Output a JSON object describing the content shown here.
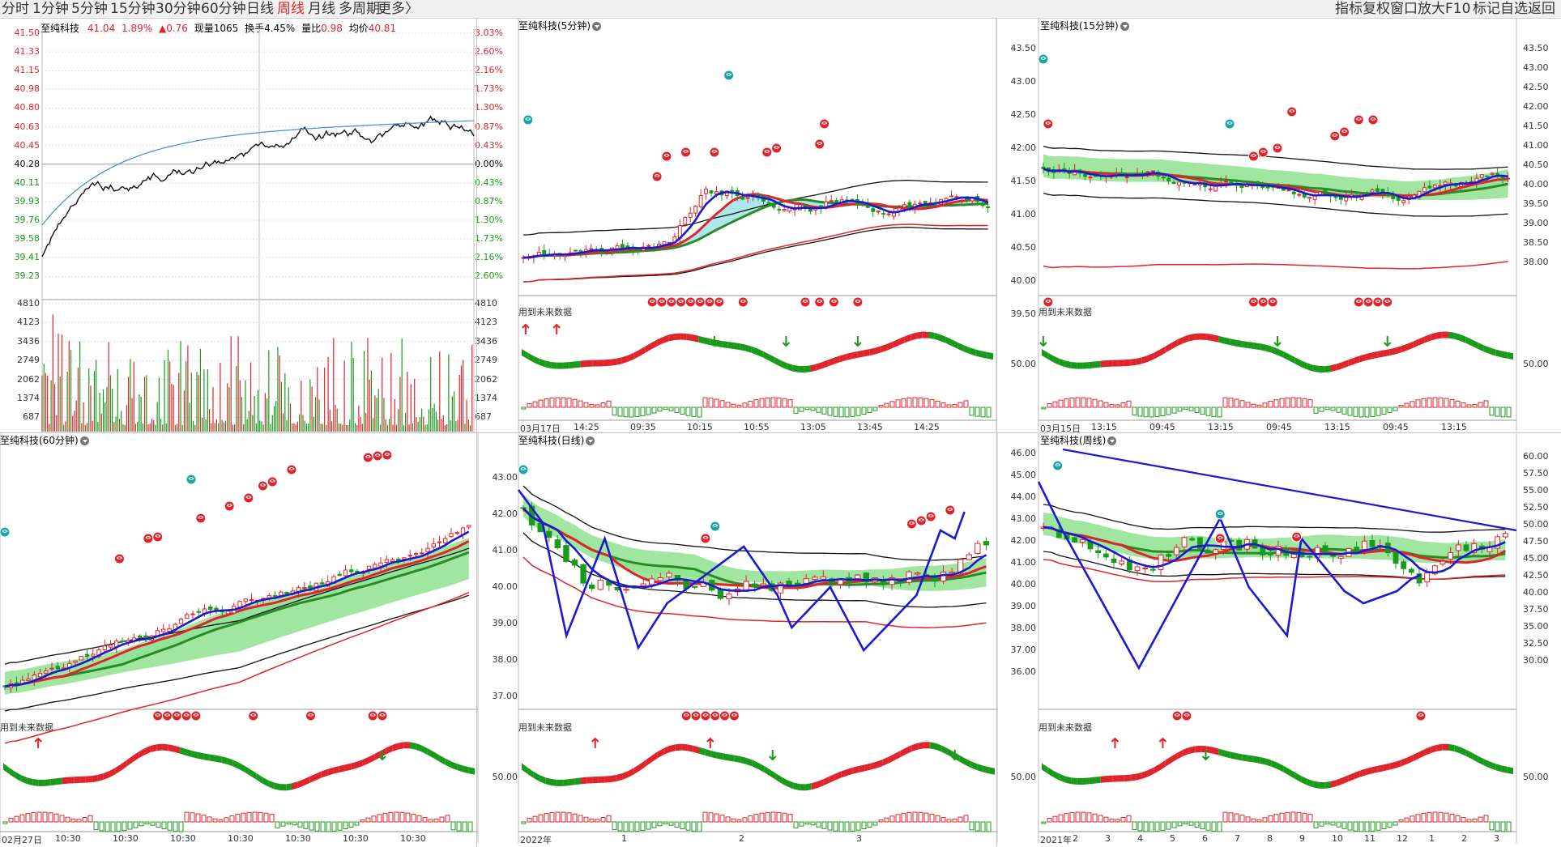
{
  "toolbar": {
    "timeframes": [
      "分时",
      "1分钟",
      "5分钟",
      "15分钟",
      "30分钟",
      "60分钟",
      "日线",
      "周线",
      "月线",
      "多周期",
      "更多〉"
    ],
    "active": "周线",
    "right_items": [
      "指标",
      "复权",
      "窗口",
      "放大",
      "F10",
      "标记",
      "自选",
      "返回"
    ]
  },
  "colors": {
    "up": "#e0242b",
    "down": "#1a9a1a",
    "blue": "#1a1ad0",
    "avg": "#3a8fd8",
    "cyan": "#9ee3e8",
    "green_band": "#8fe28f"
  },
  "intraday": {
    "title": "至纯科技",
    "quote": {
      "price": "41.04",
      "pct": "1.89%",
      "chg": "▲0.76",
      "vol_label": "现量",
      "vol": "1065",
      "turn_label": "换手",
      "turn": "4.45%",
      "ratio_label": "量比",
      "ratio": "0.98",
      "avg_label": "均价",
      "avg": "40.81"
    },
    "price_ticks": [
      "41.50",
      "41.33",
      "41.15",
      "40.98",
      "40.80",
      "40.63",
      "40.45",
      "40.28",
      "40.11",
      "39.93",
      "39.76",
      "39.58",
      "39.41",
      "39.23"
    ],
    "pct_ticks": [
      "3.03%",
      "2.60%",
      "2.16%",
      "1.73%",
      "1.30%",
      "0.87%",
      "0.43%",
      "0.00%",
      "0.43%",
      "0.87%",
      "1.30%",
      "1.73%",
      "2.16%",
      "2.60%"
    ],
    "vol_ticks": [
      "4810",
      "4123",
      "3436",
      "2749",
      "2062",
      "1374",
      "687"
    ]
  },
  "p5": {
    "title": "至纯科技(5分钟)",
    "price_ticks": [],
    "note": "用到未来数据",
    "date": "03月17日",
    "times": [
      "14:25",
      "09:35",
      "10:15",
      "10:55",
      "13:05",
      "13:45",
      "14:25"
    ]
  },
  "p15": {
    "title": "至纯科技(15分钟)",
    "left_ticks": [
      "43.50",
      "43.00",
      "42.50",
      "42.00",
      "41.50",
      "41.00",
      "40.50",
      "40.00",
      "39.50"
    ],
    "right_ticks": [
      "43.50",
      "43.00",
      "42.50",
      "42.00",
      "41.50",
      "41.00",
      "40.50",
      "40.00",
      "39.50",
      "39.00",
      "38.50",
      "38.00"
    ],
    "ind_left": "50.00",
    "ind_right": "50.00",
    "note": "用到未来数据",
    "date": "03月15日",
    "times": [
      "13:15",
      "09:45",
      "13:15",
      "09:45",
      "13:15",
      "09:45",
      "13:15"
    ]
  },
  "p60": {
    "title": "至纯科技(60分钟)",
    "note": "用到未来数据",
    "date": "02月27日",
    "times": [
      "10:30",
      "10:30",
      "10:30",
      "10:30",
      "10:30",
      "10:30",
      "10:30"
    ]
  },
  "pday": {
    "title": "至纯科技(日线)",
    "ticks": [
      "43.00",
      "42.00",
      "41.00",
      "40.00",
      "39.00",
      "38.00",
      "37.00"
    ],
    "ind": "50.00",
    "note": "用到未来数据",
    "date": "2022年",
    "months": [
      "1",
      "2",
      "3"
    ]
  },
  "pweek": {
    "title": "至纯科技(周线)",
    "left_ticks": [
      "46.00",
      "45.00",
      "44.00",
      "43.00",
      "42.00",
      "41.00",
      "40.00",
      "39.00",
      "38.00",
      "37.00",
      "36.00"
    ],
    "right_ticks": [
      "60.00",
      "57.50",
      "55.00",
      "52.50",
      "50.00",
      "47.50",
      "45.00",
      "42.50",
      "40.00",
      "37.50",
      "35.00",
      "32.50",
      "30.00"
    ],
    "ind_left": "50.00",
    "ind_right": "50.00",
    "note": "用到未来数据",
    "date": "2021年",
    "months": [
      "2",
      "3",
      "4",
      "5",
      "6",
      "7",
      "8",
      "9",
      "10",
      "11",
      "12",
      "1",
      "2",
      "3"
    ]
  }
}
